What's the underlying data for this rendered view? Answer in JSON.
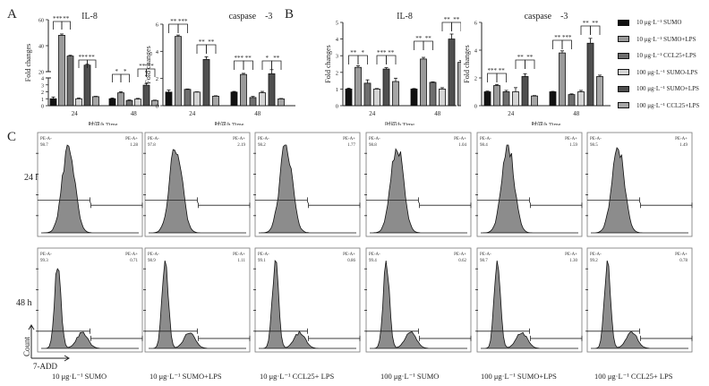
{
  "panels": {
    "A": "A",
    "B": "B",
    "C": "C"
  },
  "legend": {
    "items": [
      {
        "label": "10 μg·L⁻¹ SUMO",
        "color": "#111111"
      },
      {
        "label": "10 μg·L⁻¹ SUMO+LPS",
        "color": "#9a9a9a"
      },
      {
        "label": "10 μg·L⁻¹ CCL25+LPS",
        "color": "#6e6e6e"
      },
      {
        "label": "100 μg·L⁻¹ SUMO-LPS",
        "color": "#d4d4d4"
      },
      {
        "label": "100 μg·L⁻¹ SUMO+LPS",
        "color": "#4f4f4f"
      },
      {
        "label": "100 μg·L⁻¹ CCL25+LPS",
        "color": "#a6a6a6"
      }
    ]
  },
  "chart_data": [
    {
      "id": "A-IL8",
      "type": "bar",
      "title": "IL-8",
      "xlabel": "时间/h Time",
      "ylabel": "Fold changes",
      "axis_break": {
        "lower": [
          0,
          4
        ],
        "upper": [
          20,
          60
        ]
      },
      "yticks_lower": [
        "0",
        "1",
        "2",
        "3",
        "4"
      ],
      "yticks_upper": [
        "20",
        "40",
        "60"
      ],
      "categories": [
        "24",
        "48"
      ],
      "series": [
        {
          "name": "10 μg·L⁻¹ SUMO",
          "values": [
            1.0,
            1.0
          ],
          "errors": [
            0.25,
            0.1
          ]
        },
        {
          "name": "10 μg·L⁻¹ SUMO+LPS",
          "values": [
            48,
            1.85
          ],
          "errors": [
            1.0,
            0.15
          ]
        },
        {
          "name": "10 μg·L⁻¹ CCL25+LPS",
          "values": [
            32,
            0.75
          ],
          "errors": [
            0.6,
            0.08
          ]
        },
        {
          "name": "100 μg·L⁻¹ SUMO-LPS",
          "values": [
            1.0,
            0.95
          ],
          "errors": [
            0.1,
            0.1
          ]
        },
        {
          "name": "100 μg·L⁻¹ SUMO+LPS",
          "values": [
            25,
            2.95
          ],
          "errors": [
            0.7,
            0.25
          ]
        },
        {
          "name": "100 μg·L⁻¹ CCL25+LPS",
          "values": [
            1.3,
            0.75
          ],
          "errors": [
            0.05,
            0.05
          ]
        }
      ],
      "significance": [
        {
          "group": "24",
          "from": 0,
          "to": 1,
          "label": "***"
        },
        {
          "group": "24",
          "from": 1,
          "to": 2,
          "label": "**"
        },
        {
          "group": "24",
          "from": 3,
          "to": 4,
          "label": "***"
        },
        {
          "group": "24",
          "from": 4,
          "to": 5,
          "label": "**"
        },
        {
          "group": "48",
          "from": 0,
          "to": 1,
          "label": "*"
        },
        {
          "group": "48",
          "from": 1,
          "to": 2,
          "label": "*"
        },
        {
          "group": "48",
          "from": 3,
          "to": 4,
          "label": "**"
        },
        {
          "group": "48",
          "from": 4,
          "to": 5,
          "label": "**"
        }
      ]
    },
    {
      "id": "A-caspase3",
      "type": "bar",
      "title": "caspase　-3",
      "xlabel": "时间/h Time",
      "ylabel": "Fold changes",
      "ylim": [
        0,
        6
      ],
      "yticks": [
        "0",
        "2",
        "4",
        "6"
      ],
      "categories": [
        "24",
        "48"
      ],
      "series": [
        {
          "name": "10 μg·L⁻¹ SUMO",
          "values": [
            1.0,
            1.0
          ],
          "errors": [
            0.15,
            0.05
          ]
        },
        {
          "name": "10 μg·L⁻¹ SUMO+LPS",
          "values": [
            5.1,
            2.3
          ],
          "errors": [
            0.1,
            0.08
          ]
        },
        {
          "name": "10 μg·L⁻¹ CCL25+LPS",
          "values": [
            1.2,
            0.6
          ],
          "errors": [
            0.03,
            0.08
          ]
        },
        {
          "name": "100 μg·L⁻¹ SUMO-LPS",
          "values": [
            1.0,
            0.95
          ],
          "errors": [
            0.02,
            0.1
          ]
        },
        {
          "name": "100 μg·L⁻¹ SUMO+LPS",
          "values": [
            3.4,
            2.35
          ],
          "errors": [
            0.2,
            0.3
          ]
        },
        {
          "name": "100 μg·L⁻¹ CCL25+LPS",
          "values": [
            0.7,
            0.5
          ],
          "errors": [
            0.03,
            0.03
          ]
        }
      ],
      "significance": [
        {
          "group": "24",
          "from": 0,
          "to": 1,
          "label": "**"
        },
        {
          "group": "24",
          "from": 1,
          "to": 2,
          "label": "***"
        },
        {
          "group": "24",
          "from": 3,
          "to": 4,
          "label": "**"
        },
        {
          "group": "24",
          "from": 4,
          "to": 5,
          "label": "**"
        },
        {
          "group": "48",
          "from": 0,
          "to": 1,
          "label": "***"
        },
        {
          "group": "48",
          "from": 1,
          "to": 2,
          "label": "**"
        },
        {
          "group": "48",
          "from": 3,
          "to": 4,
          "label": "*"
        },
        {
          "group": "48",
          "from": 4,
          "to": 5,
          "label": "**"
        }
      ]
    },
    {
      "id": "B-IL8",
      "type": "bar",
      "title": "IL-8",
      "xlabel": "时间/h Time",
      "ylabel": "Fold changes",
      "ylim": [
        0,
        5
      ],
      "yticks": [
        "0",
        "1",
        "2",
        "3",
        "4",
        "5"
      ],
      "categories": [
        "24",
        "48"
      ],
      "series": [
        {
          "name": "10 μg·L⁻¹ SUMO",
          "values": [
            1.0,
            1.0
          ],
          "errors": [
            0.05,
            0.03
          ]
        },
        {
          "name": "10 μg·L⁻¹ SUMO+LPS",
          "values": [
            2.3,
            2.8
          ],
          "errors": [
            0.1,
            0.1
          ]
        },
        {
          "name": "10 μg·L⁻¹ CCL25+LPS",
          "values": [
            1.35,
            1.4
          ],
          "errors": [
            0.2,
            0.03
          ]
        },
        {
          "name": "100 μg·L⁻¹ SUMO-LPS",
          "values": [
            1.0,
            1.0
          ],
          "errors": [
            0.03,
            0.08
          ]
        },
        {
          "name": "100 μg·L⁻¹ SUMO+LPS",
          "values": [
            2.2,
            4.0
          ],
          "errors": [
            0.08,
            0.3
          ]
        },
        {
          "name": "100 μg·L⁻¹ CCL25+LPS",
          "values": [
            1.45,
            2.6
          ],
          "errors": [
            0.2,
            0.1
          ]
        }
      ],
      "significance": [
        {
          "group": "24",
          "from": 0,
          "to": 1,
          "label": "**"
        },
        {
          "group": "24",
          "from": 1,
          "to": 2,
          "label": "*"
        },
        {
          "group": "24",
          "from": 3,
          "to": 4,
          "label": "***"
        },
        {
          "group": "24",
          "from": 4,
          "to": 5,
          "label": "**"
        },
        {
          "group": "48",
          "from": 0,
          "to": 1,
          "label": "**"
        },
        {
          "group": "48",
          "from": 1,
          "to": 2,
          "label": "**"
        },
        {
          "group": "48",
          "from": 3,
          "to": 4,
          "label": "**"
        },
        {
          "group": "48",
          "from": 4,
          "to": 5,
          "label": "**"
        }
      ]
    },
    {
      "id": "B-caspase3",
      "type": "bar",
      "title": "caspase　-3",
      "xlabel": "时间/h Time",
      "ylabel": "Fold changes",
      "ylim": [
        0,
        6
      ],
      "yticks": [
        "0",
        "2",
        "4",
        "6"
      ],
      "categories": [
        "24",
        "48"
      ],
      "series": [
        {
          "name": "10 μg·L⁻¹ SUMO",
          "values": [
            1.0,
            1.0
          ],
          "errors": [
            0.05,
            0.03
          ]
        },
        {
          "name": "10 μg·L⁻¹ SUMO+LPS",
          "values": [
            1.45,
            3.8
          ],
          "errors": [
            0.08,
            0.15
          ]
        },
        {
          "name": "10 μg·L⁻¹ CCL25+LPS",
          "values": [
            1.0,
            0.8
          ],
          "errors": [
            0.1,
            0.05
          ]
        },
        {
          "name": "100 μg·L⁻¹ SUMO-LPS",
          "values": [
            1.0,
            1.0
          ],
          "errors": [
            0.3,
            0.1
          ]
        },
        {
          "name": "100 μg·L⁻¹ SUMO+LPS",
          "values": [
            2.1,
            4.5
          ],
          "errors": [
            0.2,
            0.35
          ]
        },
        {
          "name": "100 μg·L⁻¹ CCL25+LPS",
          "values": [
            0.7,
            2.1
          ],
          "errors": [
            0.03,
            0.1
          ]
        }
      ],
      "significance": [
        {
          "group": "24",
          "from": 0,
          "to": 1,
          "label": "***"
        },
        {
          "group": "24",
          "from": 1,
          "to": 2,
          "label": "**"
        },
        {
          "group": "24",
          "from": 3,
          "to": 4,
          "label": "**"
        },
        {
          "group": "24",
          "from": 4,
          "to": 5,
          "label": "**"
        },
        {
          "group": "48",
          "from": 0,
          "to": 1,
          "label": "**"
        },
        {
          "group": "48",
          "from": 1,
          "to": 2,
          "label": "***"
        },
        {
          "group": "48",
          "from": 3,
          "to": 4,
          "label": "**"
        },
        {
          "group": "48",
          "from": 4,
          "to": 5,
          "label": "**"
        }
      ]
    },
    {
      "id": "C-flow",
      "type": "area",
      "title": "7-ADD flow cytometry histograms",
      "xlabel": "7-ADD",
      "ylabel": "Count",
      "gate_labels": {
        "neg": "PE-A-",
        "pos": "PE-A+"
      },
      "rows": [
        "24 h",
        "48 h"
      ],
      "columns": [
        "10 μg·L⁻¹  SUMO",
        "10 μg·L⁻¹  SUMO+LPS",
        "10 μg·L⁻¹  CCL25+ LPS",
        "100 μg·L⁻¹  SUMO",
        "100 μg·L⁻¹  SUMO+LPS",
        "100 μg·L⁻¹  CCL25+ LPS"
      ],
      "values": {
        "24 h": [
          {
            "neg": "98.7",
            "pos": "1.28"
          },
          {
            "neg": "97.8",
            "pos": "2.19"
          },
          {
            "neg": "98.2",
            "pos": "1.77"
          },
          {
            "neg": "98.8",
            "pos": "1.04"
          },
          {
            "neg": "98.4",
            "pos": "1.59"
          },
          {
            "neg": "98.5",
            "pos": "1.49"
          }
        ],
        "48 h": [
          {
            "neg": "99.3",
            "pos": "0.71"
          },
          {
            "neg": "98.9",
            "pos": "1.11"
          },
          {
            "neg": "99.1",
            "pos": "0.86"
          },
          {
            "neg": "99.4",
            "pos": "0.62"
          },
          {
            "neg": "98.7",
            "pos": "1.30"
          },
          {
            "neg": "99.2",
            "pos": "0.78"
          }
        ]
      }
    }
  ]
}
